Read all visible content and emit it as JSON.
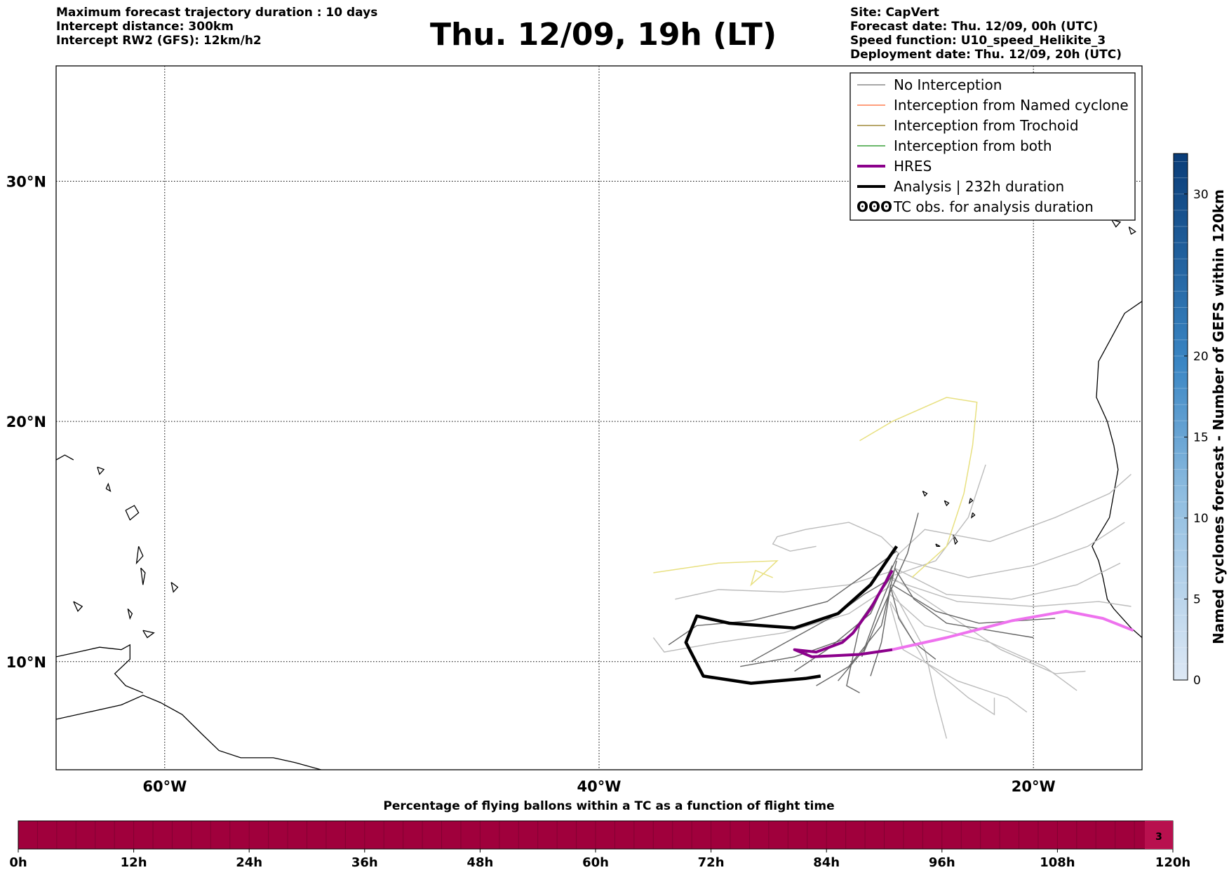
{
  "title": "Thu. 12/09, 19h (LT)",
  "info_left": [
    "Maximum forecast trajectory duration : 10 days",
    "Intercept distance: 300km",
    "Intercept RW2 (GFS):  12km/h2"
  ],
  "info_right": [
    "Site: CapVert",
    "Forecast date: Thu. 12/09, 00h (UTC)",
    "Speed function: U10_speed_Helikite_3",
    "Deployment date: Thu. 12/09, 20h (UTC)"
  ],
  "map": {
    "lon_range": [
      -65,
      -15
    ],
    "lat_range": [
      5.5,
      34.8
    ],
    "x_ticks": [
      {
        "lon": -60,
        "label": "60°W"
      },
      {
        "lon": -40,
        "label": "40°W"
      },
      {
        "lon": -20,
        "label": "20°W"
      }
    ],
    "y_ticks": [
      {
        "lat": 10,
        "label": "10°N"
      },
      {
        "lat": 20,
        "label": "20°N"
      },
      {
        "lat": 30,
        "label": "30°N"
      }
    ],
    "grid": true
  },
  "legend": {
    "placement": "top-right",
    "entries": [
      {
        "label": "No Interception",
        "color": "#888888",
        "style": "thin"
      },
      {
        "label": "Interception from Named cyclone",
        "color": "#ff7f50",
        "style": "thin"
      },
      {
        "label": "Interception from Trochoid",
        "color": "#a08c3c",
        "style": "thin"
      },
      {
        "label": "Interception from both",
        "color": "#3aa03a",
        "style": "thin"
      },
      {
        "label": "HRES",
        "color": "#8b008b",
        "style": "thick"
      },
      {
        "label": "Analysis | 232h duration",
        "color": "#000000",
        "style": "thick"
      },
      {
        "label": "TC obs. for analysis duration",
        "color": "#000000",
        "style": "symbol",
        "symbol": "ʘʘʘ"
      }
    ]
  },
  "trajectories": {
    "analysis": {
      "color": "#000000",
      "points": [
        [
          -26.3,
          14.8
        ],
        [
          -27.5,
          13.2
        ],
        [
          -29.0,
          12.0
        ],
        [
          -31.0,
          11.4
        ],
        [
          -34.0,
          11.6
        ],
        [
          -35.5,
          11.9
        ],
        [
          -36.0,
          10.8
        ],
        [
          -35.2,
          9.4
        ],
        [
          -33.0,
          9.1
        ],
        [
          -30.5,
          9.3
        ],
        [
          -29.8,
          9.4
        ]
      ]
    },
    "hres": {
      "color": "#8b008b",
      "points": [
        [
          -26.5,
          13.8
        ],
        [
          -27.5,
          12.2
        ],
        [
          -28.3,
          11.2
        ],
        [
          -28.8,
          10.8
        ],
        [
          -30.0,
          10.4
        ],
        [
          -31.0,
          10.5
        ],
        [
          -30.2,
          10.2
        ],
        [
          -28.0,
          10.3
        ],
        [
          -26.5,
          10.5
        ]
      ]
    },
    "hres_continuation": {
      "color": "#ee72ee",
      "points": [
        [
          -26.5,
          10.5
        ],
        [
          -24.0,
          11.0
        ],
        [
          -21.0,
          11.7
        ],
        [
          -18.5,
          12.1
        ],
        [
          -16.8,
          11.8
        ],
        [
          -15.4,
          11.3
        ]
      ]
    },
    "yellow": {
      "color": "#e8e080",
      "points": [
        [
          -25.6,
          13.5
        ],
        [
          -24.0,
          14.8
        ],
        [
          -23.2,
          17.0
        ],
        [
          -22.8,
          19.0
        ],
        [
          -22.6,
          20.8
        ],
        [
          -24.0,
          21.0
        ],
        [
          -26.5,
          20.0
        ],
        [
          -28.0,
          19.2
        ]
      ]
    },
    "yellow2": {
      "color": "#e8e080",
      "points": [
        [
          -37.5,
          13.7
        ],
        [
          -34.5,
          14.1
        ],
        [
          -31.8,
          14.2
        ],
        [
          -32.5,
          13.6
        ],
        [
          -33.0,
          13.2
        ],
        [
          -32.8,
          13.8
        ],
        [
          -32.0,
          13.5
        ]
      ]
    },
    "dark_grey": {
      "color": "#666666",
      "lines": [
        [
          [
            -26.2,
            14.5
          ],
          [
            -27.5,
            12.0
          ],
          [
            -29.5,
            10.5
          ],
          [
            -31.0,
            9.6
          ]
        ],
        [
          [
            -26.3,
            14.2
          ],
          [
            -27.0,
            11.5
          ],
          [
            -28.5,
            9.8
          ],
          [
            -30.0,
            9.0
          ]
        ],
        [
          [
            -26.4,
            13.8
          ],
          [
            -27.2,
            12.0
          ],
          [
            -27.8,
            10.5
          ],
          [
            -29.0,
            9.2
          ]
        ],
        [
          [
            -26.5,
            13.5
          ],
          [
            -27.8,
            12.8
          ],
          [
            -29.0,
            12.0
          ],
          [
            -31.0,
            11.0
          ],
          [
            -33.0,
            10.0
          ]
        ],
        [
          [
            -26.5,
            14.0
          ],
          [
            -27.0,
            13.0
          ],
          [
            -28.0,
            11.5
          ],
          [
            -28.6,
            9.0
          ],
          [
            -28.0,
            8.7
          ]
        ],
        [
          [
            -26.3,
            14.6
          ],
          [
            -27.8,
            13.6
          ],
          [
            -29.5,
            12.5
          ],
          [
            -33.0,
            11.7
          ],
          [
            -35.5,
            11.5
          ],
          [
            -36.8,
            10.7
          ]
        ],
        [
          [
            -26.6,
            13.2
          ],
          [
            -26.2,
            11.8
          ],
          [
            -25.5,
            10.8
          ],
          [
            -24.5,
            10.1
          ]
        ],
        [
          [
            -26.4,
            13.9
          ],
          [
            -25.5,
            12.6
          ],
          [
            -24.0,
            11.6
          ],
          [
            -22.0,
            11.3
          ],
          [
            -20.0,
            11.0
          ]
        ],
        [
          [
            -26.5,
            13.6
          ],
          [
            -28.5,
            11.0
          ],
          [
            -31.0,
            10.2
          ],
          [
            -33.5,
            9.8
          ]
        ],
        [
          [
            -26.6,
            13.0
          ],
          [
            -27.0,
            10.8
          ],
          [
            -27.5,
            9.4
          ]
        ],
        [
          [
            -25.3,
            16.2
          ],
          [
            -25.8,
            14.5
          ],
          [
            -26.8,
            12.5
          ],
          [
            -27.9,
            10.2
          ]
        ],
        [
          [
            -26.5,
            13.2
          ],
          [
            -24.5,
            12.1
          ],
          [
            -22.5,
            11.6
          ],
          [
            -19.0,
            11.8
          ]
        ]
      ]
    },
    "light_grey": {
      "color": "#bbbbbb",
      "lines": [
        [
          [
            -26.2,
            14.5
          ],
          [
            -27.0,
            15.2
          ],
          [
            -28.5,
            15.8
          ],
          [
            -30.5,
            15.5
          ],
          [
            -31.8,
            15.2
          ],
          [
            -32.0,
            14.9
          ],
          [
            -31.2,
            14.6
          ],
          [
            -30.0,
            14.8
          ]
        ],
        [
          [
            -26.4,
            13.9
          ],
          [
            -24.0,
            12.8
          ],
          [
            -21.0,
            12.6
          ],
          [
            -18.0,
            13.2
          ],
          [
            -16.0,
            14.1
          ]
        ],
        [
          [
            -26.3,
            14.3
          ],
          [
            -23.0,
            13.5
          ],
          [
            -20.0,
            14.0
          ],
          [
            -17.5,
            14.8
          ],
          [
            -15.8,
            15.8
          ]
        ],
        [
          [
            -26.5,
            13.5
          ],
          [
            -24.0,
            12.0
          ],
          [
            -21.5,
            10.5
          ],
          [
            -19.0,
            9.5
          ],
          [
            -17.6,
            9.6
          ]
        ],
        [
          [
            -26.6,
            12.5
          ],
          [
            -25.0,
            10.0
          ],
          [
            -23.0,
            8.5
          ],
          [
            -21.8,
            7.8
          ],
          [
            -21.8,
            8.5
          ]
        ],
        [
          [
            -26.5,
            13.0
          ],
          [
            -25.0,
            10.5
          ],
          [
            -24.5,
            8.5
          ],
          [
            -24.0,
            6.8
          ]
        ],
        [
          [
            -26.4,
            13.6
          ],
          [
            -24.5,
            14.2
          ],
          [
            -23.0,
            16.0
          ],
          [
            -22.2,
            18.2
          ]
        ],
        [
          [
            -26.5,
            13.2
          ],
          [
            -28.5,
            12.0
          ],
          [
            -31.5,
            11.2
          ],
          [
            -34.5,
            10.8
          ],
          [
            -37.0,
            10.4
          ],
          [
            -37.5,
            11.0
          ]
        ],
        [
          [
            -26.4,
            13.8
          ],
          [
            -28.5,
            13.2
          ],
          [
            -31.5,
            12.9
          ],
          [
            -34.5,
            13.0
          ],
          [
            -36.5,
            12.6
          ]
        ],
        [
          [
            -26.6,
            12.8
          ],
          [
            -25.0,
            11.5
          ],
          [
            -22.0,
            10.8
          ],
          [
            -19.5,
            9.8
          ],
          [
            -18.0,
            8.8
          ]
        ],
        [
          [
            -26.3,
            14.4
          ],
          [
            -25.0,
            15.5
          ],
          [
            -22.0,
            15.0
          ],
          [
            -19.0,
            16.0
          ],
          [
            -16.5,
            17.0
          ],
          [
            -15.5,
            17.8
          ]
        ],
        [
          [
            -26.5,
            13.4
          ],
          [
            -23.5,
            12.5
          ],
          [
            -20.0,
            12.3
          ],
          [
            -17.0,
            12.5
          ],
          [
            -15.5,
            12.3
          ]
        ],
        [
          [
            -26.6,
            12.4
          ],
          [
            -26.0,
            10.5
          ],
          [
            -23.5,
            9.2
          ],
          [
            -21.2,
            8.5
          ],
          [
            -20.3,
            7.9
          ]
        ]
      ]
    }
  },
  "right_colorbar": {
    "label": "Named cyclones forecast - Number of GEFS within 120km",
    "vmin": 0,
    "vmax": 32.5,
    "ticks": [
      0,
      5,
      10,
      15,
      20,
      30
    ],
    "color_low": "#dde8f5",
    "color_high": "#0a3d78"
  },
  "bottom_bar": {
    "title": "Percentage of flying ballons within a TC as a function of flight time",
    "fill_color": "#a0003c",
    "tick_labels": [
      "0h",
      "12h",
      "24h",
      "36h",
      "48h",
      "60h",
      "72h",
      "84h",
      "96h",
      "108h",
      "120h"
    ],
    "cells": 60,
    "annotation": "3"
  }
}
